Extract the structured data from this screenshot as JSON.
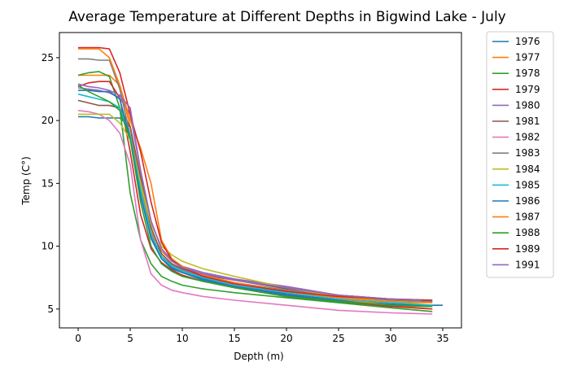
{
  "chart_data": {
    "type": "line",
    "title": "Average Temperature at Different Depths in Bigwind Lake - July",
    "xlabel": "Depth (m)",
    "ylabel": "Temp (C°)",
    "xlim": [
      -1.8,
      36.8
    ],
    "ylim": [
      3.5,
      27.0
    ],
    "xticks": [
      0,
      5,
      10,
      15,
      20,
      25,
      30,
      35
    ],
    "yticks": [
      5,
      10,
      15,
      20,
      25
    ],
    "grid": false,
    "legend_position": "outside-right",
    "series": [
      {
        "name": "1976",
        "color": "#1f77b4",
        "points": [
          [
            0,
            20.3
          ],
          [
            1,
            20.3
          ],
          [
            2,
            20.2
          ],
          [
            3,
            20.2
          ],
          [
            4,
            20.2
          ],
          [
            5,
            19.5
          ],
          [
            6,
            14.5
          ],
          [
            7,
            11.0
          ],
          [
            8,
            9.2
          ],
          [
            9,
            8.3
          ],
          [
            10,
            7.9
          ],
          [
            12,
            7.4
          ],
          [
            15,
            6.9
          ],
          [
            20,
            6.2
          ],
          [
            25,
            5.7
          ],
          [
            30,
            5.4
          ],
          [
            34,
            5.3
          ],
          [
            35,
            5.3
          ]
        ]
      },
      {
        "name": "1977",
        "color": "#ff7f0e",
        "points": [
          [
            0,
            23.6
          ],
          [
            1,
            23.6
          ],
          [
            2,
            23.6
          ],
          [
            3,
            23.6
          ],
          [
            4,
            22.8
          ],
          [
            5,
            19.5
          ],
          [
            6,
            15.0
          ],
          [
            7,
            11.2
          ],
          [
            8,
            9.6
          ],
          [
            9,
            8.8
          ],
          [
            10,
            8.3
          ],
          [
            12,
            7.7
          ],
          [
            15,
            7.1
          ],
          [
            20,
            6.3
          ],
          [
            25,
            5.8
          ],
          [
            30,
            5.3
          ],
          [
            34,
            5.0
          ]
        ]
      },
      {
        "name": "1978",
        "color": "#2ca02c",
        "points": [
          [
            0,
            23.6
          ],
          [
            1,
            23.8
          ],
          [
            2,
            23.9
          ],
          [
            3,
            23.5
          ],
          [
            4,
            21.0
          ],
          [
            5,
            14.2
          ],
          [
            6,
            10.5
          ],
          [
            7,
            8.6
          ],
          [
            8,
            7.6
          ],
          [
            9,
            7.2
          ],
          [
            10,
            6.9
          ],
          [
            12,
            6.6
          ],
          [
            15,
            6.3
          ],
          [
            20,
            5.9
          ],
          [
            25,
            5.5
          ],
          [
            30,
            5.1
          ],
          [
            34,
            4.8
          ]
        ]
      },
      {
        "name": "1979",
        "color": "#d62728",
        "points": [
          [
            0,
            22.7
          ],
          [
            1,
            23.0
          ],
          [
            2,
            23.1
          ],
          [
            3,
            23.1
          ],
          [
            4,
            21.8
          ],
          [
            5,
            17.5
          ],
          [
            6,
            12.5
          ],
          [
            7,
            9.8
          ],
          [
            8,
            8.7
          ],
          [
            9,
            8.1
          ],
          [
            10,
            7.7
          ],
          [
            12,
            7.2
          ],
          [
            15,
            6.7
          ],
          [
            20,
            6.0
          ],
          [
            25,
            5.6
          ],
          [
            30,
            5.2
          ],
          [
            34,
            5.0
          ]
        ]
      },
      {
        "name": "1980",
        "color": "#9467bd",
        "points": [
          [
            0,
            22.6
          ],
          [
            1,
            22.5
          ],
          [
            2,
            22.4
          ],
          [
            3,
            22.2
          ],
          [
            4,
            21.8
          ],
          [
            5,
            20.5
          ],
          [
            6,
            16.0
          ],
          [
            7,
            12.0
          ],
          [
            8,
            9.8
          ],
          [
            9,
            8.9
          ],
          [
            10,
            8.4
          ],
          [
            12,
            7.9
          ],
          [
            15,
            7.4
          ],
          [
            20,
            6.8
          ],
          [
            25,
            6.1
          ],
          [
            30,
            5.8
          ],
          [
            34,
            5.6
          ]
        ]
      },
      {
        "name": "1981",
        "color": "#8c564b",
        "points": [
          [
            0,
            21.6
          ],
          [
            1,
            21.4
          ],
          [
            2,
            21.2
          ],
          [
            3,
            21.2
          ],
          [
            4,
            21.0
          ],
          [
            5,
            19.5
          ],
          [
            6,
            15.5
          ],
          [
            7,
            11.5
          ],
          [
            8,
            9.4
          ],
          [
            9,
            8.6
          ],
          [
            10,
            8.2
          ],
          [
            12,
            7.7
          ],
          [
            15,
            7.3
          ],
          [
            20,
            6.6
          ],
          [
            25,
            6.1
          ],
          [
            30,
            5.8
          ],
          [
            34,
            5.7
          ]
        ]
      },
      {
        "name": "1982",
        "color": "#e377c2",
        "points": [
          [
            0,
            20.8
          ],
          [
            1,
            20.7
          ],
          [
            2,
            20.5
          ],
          [
            3,
            20.0
          ],
          [
            4,
            19.0
          ],
          [
            5,
            16.5
          ],
          [
            6,
            10.5
          ],
          [
            7,
            7.8
          ],
          [
            8,
            6.9
          ],
          [
            9,
            6.5
          ],
          [
            10,
            6.3
          ],
          [
            12,
            6.0
          ],
          [
            15,
            5.7
          ],
          [
            20,
            5.3
          ],
          [
            25,
            4.9
          ],
          [
            30,
            4.7
          ],
          [
            34,
            4.6
          ]
        ]
      },
      {
        "name": "1983",
        "color": "#7f7f7f",
        "points": [
          [
            0,
            24.9
          ],
          [
            1,
            24.9
          ],
          [
            2,
            24.8
          ],
          [
            3,
            24.8
          ],
          [
            4,
            22.5
          ],
          [
            5,
            18.8
          ],
          [
            6,
            14.0
          ],
          [
            7,
            10.8
          ],
          [
            8,
            9.2
          ],
          [
            9,
            8.5
          ],
          [
            10,
            8.1
          ],
          [
            12,
            7.6
          ],
          [
            15,
            7.1
          ],
          [
            20,
            6.5
          ],
          [
            25,
            6.0
          ],
          [
            30,
            5.7
          ],
          [
            34,
            5.6
          ]
        ]
      },
      {
        "name": "1984",
        "color": "#bcbd22",
        "points": [
          [
            0,
            20.5
          ],
          [
            1,
            20.5
          ],
          [
            2,
            20.5
          ],
          [
            3,
            20.5
          ],
          [
            4,
            19.8
          ],
          [
            5,
            18.5
          ],
          [
            6,
            15.0
          ],
          [
            7,
            11.8
          ],
          [
            8,
            10.0
          ],
          [
            9,
            9.3
          ],
          [
            10,
            8.8
          ],
          [
            12,
            8.2
          ],
          [
            15,
            7.6
          ],
          [
            20,
            6.7
          ],
          [
            25,
            6.0
          ],
          [
            30,
            5.6
          ],
          [
            34,
            5.3
          ]
        ]
      },
      {
        "name": "1985",
        "color": "#17becf",
        "points": [
          [
            0,
            22.1
          ],
          [
            1,
            21.9
          ],
          [
            2,
            21.7
          ],
          [
            3,
            21.5
          ],
          [
            4,
            21.0
          ],
          [
            5,
            18.8
          ],
          [
            6,
            14.5
          ],
          [
            7,
            11.0
          ],
          [
            8,
            9.2
          ],
          [
            9,
            8.4
          ],
          [
            10,
            8.0
          ],
          [
            12,
            7.5
          ],
          [
            15,
            6.9
          ],
          [
            20,
            6.3
          ],
          [
            25,
            5.8
          ],
          [
            30,
            5.5
          ],
          [
            34,
            5.3
          ]
        ]
      },
      {
        "name": "1986",
        "color": "#1f77b4",
        "points": [
          [
            0,
            22.4
          ],
          [
            1,
            22.4
          ],
          [
            2,
            22.3
          ],
          [
            3,
            22.3
          ],
          [
            4,
            21.7
          ],
          [
            5,
            18.5
          ],
          [
            6,
            14.0
          ],
          [
            7,
            10.6
          ],
          [
            8,
            9.0
          ],
          [
            9,
            8.2
          ],
          [
            10,
            7.9
          ],
          [
            12,
            7.3
          ],
          [
            15,
            6.8
          ],
          [
            20,
            6.1
          ],
          [
            25,
            5.6
          ],
          [
            30,
            5.3
          ],
          [
            34,
            5.2
          ]
        ]
      },
      {
        "name": "1987",
        "color": "#ff7f0e",
        "points": [
          [
            0,
            25.7
          ],
          [
            1,
            25.7
          ],
          [
            2,
            25.7
          ],
          [
            3,
            25.0
          ],
          [
            4,
            22.8
          ],
          [
            5,
            20.0
          ],
          [
            6,
            17.8
          ],
          [
            7,
            15.0
          ],
          [
            8,
            10.5
          ],
          [
            9,
            9.0
          ],
          [
            10,
            8.4
          ],
          [
            12,
            7.7
          ],
          [
            15,
            7.1
          ],
          [
            20,
            6.4
          ],
          [
            25,
            5.9
          ],
          [
            30,
            5.6
          ],
          [
            34,
            5.5
          ]
        ]
      },
      {
        "name": "1988",
        "color": "#2ca02c",
        "points": [
          [
            0,
            22.8
          ],
          [
            1,
            22.3
          ],
          [
            2,
            21.9
          ],
          [
            3,
            21.5
          ],
          [
            4,
            20.8
          ],
          [
            5,
            18.5
          ],
          [
            6,
            13.5
          ],
          [
            7,
            10.0
          ],
          [
            8,
            8.6
          ],
          [
            9,
            8.0
          ],
          [
            10,
            7.6
          ],
          [
            12,
            7.2
          ],
          [
            15,
            6.7
          ],
          [
            20,
            6.0
          ],
          [
            25,
            5.6
          ],
          [
            30,
            5.3
          ],
          [
            34,
            5.2
          ]
        ]
      },
      {
        "name": "1989",
        "color": "#d62728",
        "points": [
          [
            0,
            25.8
          ],
          [
            1,
            25.8
          ],
          [
            2,
            25.8
          ],
          [
            3,
            25.7
          ],
          [
            4,
            23.8
          ],
          [
            5,
            20.5
          ],
          [
            6,
            17.5
          ],
          [
            7,
            13.5
          ],
          [
            8,
            10.3
          ],
          [
            9,
            8.9
          ],
          [
            10,
            8.3
          ],
          [
            12,
            7.6
          ],
          [
            15,
            7.0
          ],
          [
            20,
            6.4
          ],
          [
            25,
            6.0
          ],
          [
            30,
            5.8
          ],
          [
            34,
            5.7
          ]
        ]
      },
      {
        "name": "1991",
        "color": "#9467bd",
        "points": [
          [
            0,
            22.9
          ],
          [
            1,
            22.7
          ],
          [
            2,
            22.6
          ],
          [
            3,
            22.4
          ],
          [
            4,
            22.0
          ],
          [
            5,
            21.0
          ],
          [
            6,
            16.0
          ],
          [
            7,
            12.0
          ],
          [
            8,
            9.8
          ],
          [
            9,
            8.8
          ],
          [
            10,
            8.3
          ],
          [
            12,
            7.8
          ],
          [
            15,
            7.3
          ],
          [
            20,
            6.7
          ],
          [
            25,
            6.1
          ],
          [
            30,
            5.8
          ],
          [
            33,
            5.7
          ]
        ]
      }
    ]
  }
}
